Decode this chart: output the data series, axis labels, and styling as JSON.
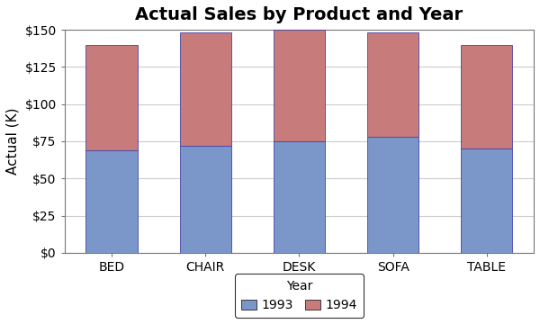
{
  "categories": [
    "BED",
    "CHAIR",
    "DESK",
    "SOFA",
    "TABLE"
  ],
  "values_1993": [
    69,
    72,
    75,
    78,
    70
  ],
  "values_1994": [
    71,
    76,
    75,
    70,
    70
  ],
  "color_1993": "#7B96C8",
  "color_1994": "#C87B7B",
  "edge_color": "#4444AA",
  "title": "Actual Sales by Product and Year",
  "ylabel": "Actual (K)",
  "ylim": [
    0,
    150
  ],
  "yticks": [
    0,
    25,
    50,
    75,
    100,
    125,
    150
  ],
  "legend_title": "Year",
  "legend_1993": "1993",
  "legend_1994": "1994",
  "title_fontsize": 14,
  "label_fontsize": 11,
  "tick_fontsize": 10,
  "background_color": "#FFFFFF",
  "plot_bg_color": "#FFFFFF",
  "grid_color": "#CCCCCC",
  "spine_color": "#888888"
}
